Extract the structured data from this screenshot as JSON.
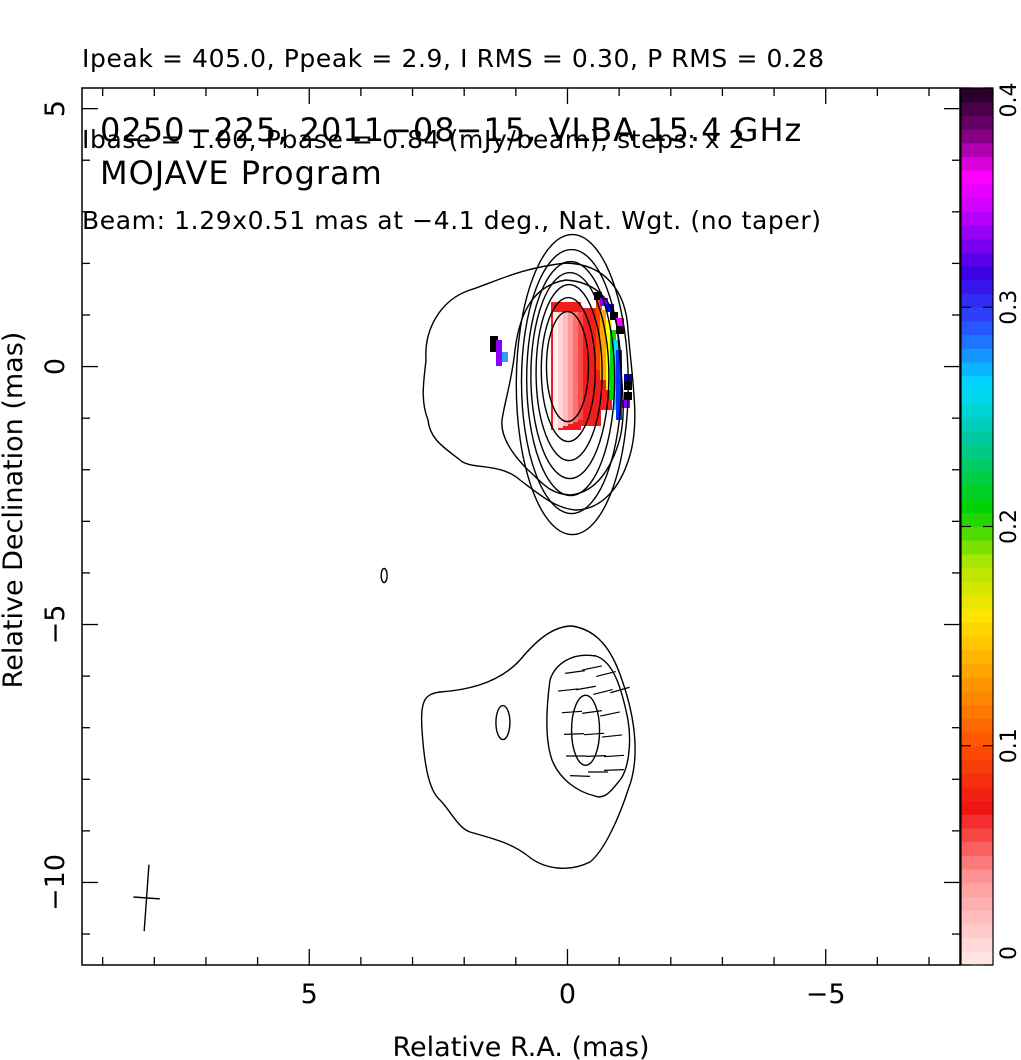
{
  "header": {
    "line1": "Ipeak = 405.0, Ppeak = 2.9, I RMS = 0.30, P RMS = 0.28",
    "line2": "Ibase = 1.00, Pbase = 0.84 (mJy/beam), steps: x 2",
    "line3": "Beam: 1.29x0.51 mas at −4.1 deg., Nat. Wgt. (no taper)"
  },
  "chart_data": {
    "type": "contour",
    "title": "0250−225, 2011−08−15, VLBA 15.4 GHz",
    "subtitle": "MOJAVE Program",
    "xlabel": "Relative R.A. (mas)",
    "ylabel": "Relative Declination (mas)",
    "xlim": [
      9.4,
      -7.6
    ],
    "ylim": [
      -11.6,
      5.4
    ],
    "x_ticks": [
      5,
      0,
      -5
    ],
    "x_tick_labels": [
      "5",
      "0",
      "−5"
    ],
    "y_ticks": [
      5,
      0,
      -5,
      -10
    ],
    "y_tick_labels": [
      "5",
      "0",
      "−5",
      "−10"
    ],
    "colorbar": {
      "range": [
        0,
        0.4
      ],
      "ticks": [
        0,
        0.1,
        0.2,
        0.3,
        0.4
      ],
      "tick_labels": [
        "0",
        "0.1",
        "0.2",
        "0.3",
        "0.4"
      ]
    },
    "panels": [
      {
        "name": "upper",
        "center_dec": 0
      },
      {
        "name": "lower",
        "center_dec": -7
      }
    ],
    "beam": {
      "major_mas": 1.29,
      "minor_mas": 0.51,
      "pa_deg": -4.1
    },
    "colors": {
      "axis": "#000000",
      "contour": "#000000"
    }
  }
}
